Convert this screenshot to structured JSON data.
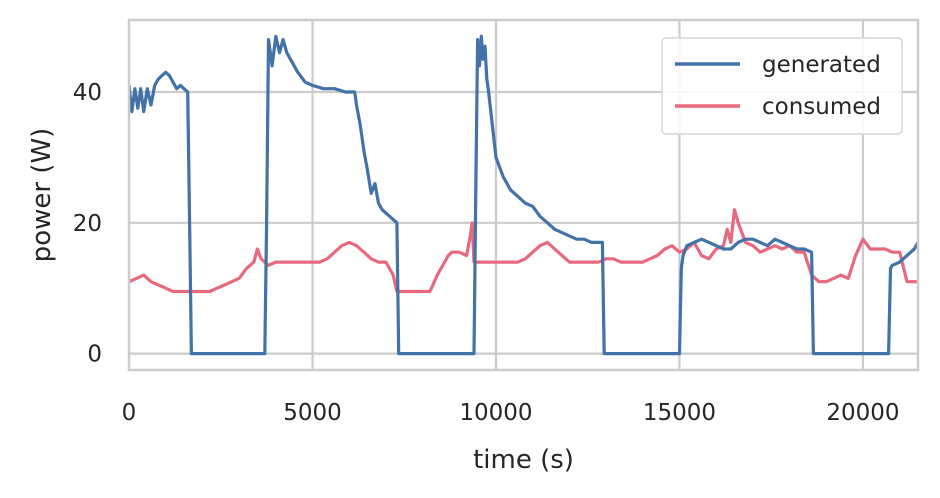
{
  "chart_data": {
    "type": "line",
    "title": "",
    "xlabel": "time (s)",
    "ylabel": "power (W)",
    "xlim": [
      0,
      21500
    ],
    "ylim": [
      -2.5,
      51
    ],
    "xticks": [
      0,
      5000,
      10000,
      15000,
      20000
    ],
    "yticks": [
      0,
      20,
      40
    ],
    "grid": true,
    "legend_position": "top-right",
    "series": [
      {
        "name": "generated",
        "color": "#4272a8",
        "x": [
          0,
          80,
          160,
          240,
          320,
          400,
          500,
          600,
          700,
          800,
          900,
          1000,
          1100,
          1200,
          1300,
          1400,
          1500,
          1600,
          1650,
          1700,
          3700,
          3750,
          3800,
          3900,
          4000,
          4100,
          4200,
          4300,
          4400,
          4600,
          4800,
          5000,
          5300,
          5600,
          5900,
          6150,
          6200,
          6300,
          6400,
          6500,
          6600,
          6700,
          6800,
          6900,
          7000,
          7100,
          7200,
          7300,
          7350,
          9400,
          9450,
          9500,
          9550,
          9600,
          9650,
          9700,
          9750,
          9800,
          9900,
          10000,
          10200,
          10400,
          10600,
          10800,
          11000,
          11200,
          11400,
          11600,
          11800,
          12000,
          12200,
          12400,
          12600,
          12800,
          12900,
          12950,
          15000,
          15050,
          15100,
          15200,
          15400,
          15600,
          15800,
          16000,
          16200,
          16400,
          16600,
          16800,
          17000,
          17200,
          17400,
          17600,
          17800,
          18000,
          18200,
          18400,
          18600,
          18650,
          20700,
          20750,
          20800,
          21000,
          21200,
          21400,
          21500
        ],
        "y": [
          41,
          37,
          40.5,
          37.5,
          40.5,
          37,
          40.5,
          38,
          41,
          42,
          42.5,
          43,
          42.5,
          41.5,
          40.5,
          41,
          40.5,
          40,
          20,
          0,
          0,
          20,
          48,
          44,
          48.5,
          46,
          48,
          46,
          45,
          43,
          41.5,
          41,
          40.5,
          40.5,
          40,
          40,
          38,
          35,
          31,
          28,
          24.5,
          26,
          23,
          22,
          21.5,
          21,
          20.5,
          20,
          0,
          0,
          25,
          48,
          44,
          48.5,
          45,
          47,
          42,
          40,
          35,
          30,
          27,
          25,
          24,
          23,
          22.5,
          21,
          20,
          19,
          18.5,
          18,
          17.5,
          17.5,
          17,
          17,
          17,
          0,
          0,
          13,
          15,
          16.5,
          17,
          17.5,
          17,
          16.5,
          16,
          16,
          17,
          17.5,
          17.5,
          17,
          16.5,
          17.5,
          17,
          16.5,
          16,
          16,
          15.5,
          0,
          0,
          13,
          13.5,
          14,
          15,
          16,
          17
        ]
      },
      {
        "name": "consumed",
        "color": "#e8697d",
        "x": [
          0,
          200,
          400,
          600,
          800,
          1000,
          1200,
          1400,
          1600,
          1800,
          2000,
          2200,
          2400,
          2600,
          2800,
          3000,
          3200,
          3400,
          3500,
          3600,
          3700,
          3800,
          4000,
          4200,
          4400,
          4600,
          4800,
          5000,
          5200,
          5400,
          5600,
          5800,
          6000,
          6200,
          6400,
          6600,
          6800,
          7000,
          7200,
          7300,
          7400,
          7600,
          7800,
          8000,
          8200,
          8400,
          8600,
          8700,
          8800,
          9000,
          9200,
          9300,
          9350,
          9400,
          9450,
          9500,
          9600,
          9800,
          10000,
          10200,
          10400,
          10600,
          10800,
          11000,
          11200,
          11400,
          11600,
          11800,
          12000,
          12200,
          12400,
          12600,
          12800,
          13000,
          13200,
          13400,
          13600,
          13800,
          14000,
          14200,
          14400,
          14600,
          14800,
          14900,
          15000,
          15200,
          15400,
          15600,
          15800,
          16000,
          16200,
          16300,
          16400,
          16500,
          16600,
          16800,
          17000,
          17200,
          17400,
          17600,
          17800,
          18000,
          18200,
          18400,
          18600,
          18800,
          19000,
          19200,
          19400,
          19600,
          19800,
          20000,
          20200,
          20400,
          20600,
          20800,
          21000,
          21200,
          21400,
          21500
        ],
        "y": [
          11,
          11.5,
          12,
          11,
          10.5,
          10,
          9.5,
          9.5,
          9.5,
          9.5,
          9.5,
          9.5,
          10,
          10.5,
          11,
          11.5,
          13,
          14,
          16,
          14.5,
          14,
          13.5,
          14,
          14,
          14,
          14,
          14,
          14,
          14,
          14.5,
          15.5,
          16.5,
          17,
          16.5,
          15.5,
          14.5,
          14,
          14,
          12,
          9.5,
          9.5,
          9.5,
          9.5,
          9.5,
          9.5,
          12,
          14,
          15,
          15.5,
          15.5,
          15,
          18,
          20,
          14,
          14,
          14,
          14,
          14,
          14,
          14,
          14,
          14,
          14.5,
          15.5,
          16.5,
          17,
          16,
          15,
          14,
          14,
          14,
          14,
          14,
          14.5,
          14.5,
          14,
          14,
          14,
          14,
          14.5,
          15,
          16,
          16.5,
          16,
          15.5,
          16,
          17,
          15,
          14.5,
          16,
          16.5,
          19,
          17,
          22,
          20,
          17,
          16.5,
          15.5,
          16,
          16.5,
          16,
          16.5,
          15.5,
          15.5,
          12,
          11,
          11,
          11.5,
          12,
          11.5,
          15,
          17.5,
          16,
          16,
          16,
          15.5,
          15.5,
          11,
          11,
          11
        ]
      }
    ]
  }
}
